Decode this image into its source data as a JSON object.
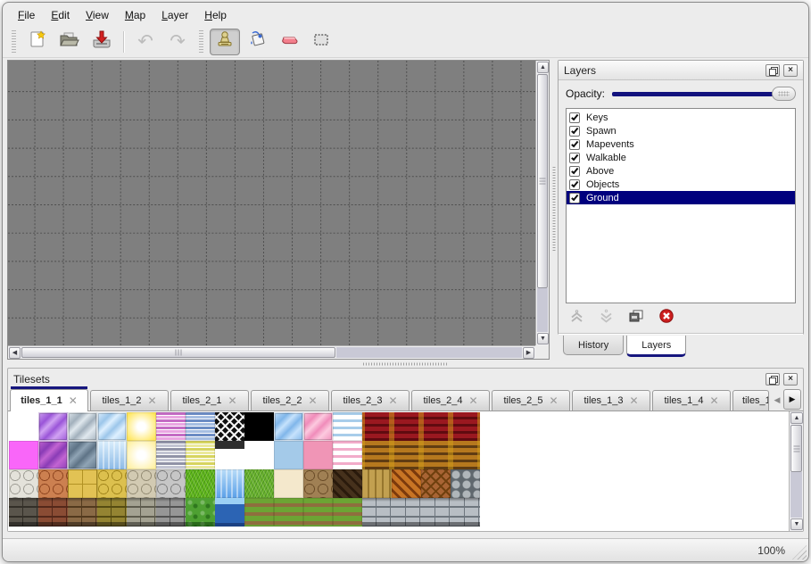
{
  "menu": {
    "items": [
      "File",
      "Edit",
      "View",
      "Map",
      "Layer",
      "Help"
    ]
  },
  "toolbar": {
    "buttons": [
      {
        "id": "new",
        "icon": "new-document-icon",
        "disabled": false,
        "active": false
      },
      {
        "id": "open",
        "icon": "open-folder-icon",
        "disabled": false,
        "active": false
      },
      {
        "id": "save",
        "icon": "save-icon",
        "disabled": false,
        "active": false
      },
      {
        "id": "undo",
        "icon": "undo-icon",
        "disabled": true,
        "active": false
      },
      {
        "id": "redo",
        "icon": "redo-icon",
        "disabled": true,
        "active": false
      },
      {
        "id": "stamp",
        "icon": "stamp-tool-icon",
        "disabled": false,
        "active": true
      },
      {
        "id": "fill",
        "icon": "fill-tool-icon",
        "disabled": false,
        "active": false
      },
      {
        "id": "eraser",
        "icon": "eraser-tool-icon",
        "disabled": false,
        "active": false
      },
      {
        "id": "select",
        "icon": "selection-tool-icon",
        "disabled": false,
        "active": false
      }
    ]
  },
  "layers_panel": {
    "title": "Layers",
    "opacity_label": "Opacity:",
    "opacity_percent": 100,
    "layers": [
      {
        "label": "Keys",
        "checked": true,
        "selected": false
      },
      {
        "label": "Spawn",
        "checked": true,
        "selected": false
      },
      {
        "label": "Mapevents",
        "checked": true,
        "selected": false
      },
      {
        "label": "Walkable",
        "checked": true,
        "selected": false
      },
      {
        "label": "Above",
        "checked": true,
        "selected": false
      },
      {
        "label": "Objects",
        "checked": true,
        "selected": false
      },
      {
        "label": "Ground",
        "checked": true,
        "selected": true
      }
    ],
    "tabs": [
      {
        "label": "History",
        "active": false
      },
      {
        "label": "Layers",
        "active": true
      }
    ]
  },
  "tilesets_panel": {
    "title": "Tilesets",
    "tabs": [
      {
        "label": "tiles_1_1",
        "active": true,
        "truncated": false
      },
      {
        "label": "tiles_1_2",
        "active": false,
        "truncated": false
      },
      {
        "label": "tiles_2_1",
        "active": false,
        "truncated": false
      },
      {
        "label": "tiles_2_2",
        "active": false,
        "truncated": false
      },
      {
        "label": "tiles_2_3",
        "active": false,
        "truncated": false
      },
      {
        "label": "tiles_2_4",
        "active": false,
        "truncated": false
      },
      {
        "label": "tiles_2_5",
        "active": false,
        "truncated": false
      },
      {
        "label": "tiles_1_3",
        "active": false,
        "truncated": false
      },
      {
        "label": "tiles_1_4",
        "active": false,
        "truncated": false
      },
      {
        "label": "tiles_1_",
        "active": false,
        "truncated": true
      }
    ]
  },
  "statusbar": {
    "zoom": "100%"
  },
  "colors": {
    "accent_navy": "#00007e",
    "canvas_gray": "#7f7f7f",
    "grid_line": "#3f3f3f",
    "selection_red": "#cc1f1f"
  },
  "palette": {
    "rows": [
      [
        {
          "n": "blank",
          "p": "empty"
        },
        {
          "n": "purple-crystal",
          "p": "crystal",
          "c1": "#9a55d8",
          "c2": "#d0a2f2"
        },
        {
          "n": "gray-crystal",
          "p": "crystal",
          "c1": "#a2b0bc",
          "c2": "#e0e8ee"
        },
        {
          "n": "blue-crystal",
          "p": "crystal",
          "c1": "#9cc6ea",
          "c2": "#def0ff"
        },
        {
          "n": "yellow-glow",
          "p": "glow",
          "c1": "#ffe65a"
        },
        {
          "n": "pink-stripes",
          "p": "stripes",
          "c1": "#c46cc4",
          "c2": "#eaa6e2"
        },
        {
          "n": "blue-stripes",
          "p": "stripes",
          "c1": "#6c8cc4",
          "c2": "#a6bee2"
        },
        {
          "n": "lattice",
          "p": "lattice",
          "c1": "#101010",
          "c2": "#f2f2f2"
        },
        {
          "n": "black",
          "p": "solid",
          "c1": "#000000"
        },
        {
          "n": "skyblue-crystal",
          "p": "crystal",
          "c1": "#80b6ea",
          "c2": "#c6e2fc"
        },
        {
          "n": "pink-crystal",
          "p": "crystal",
          "c1": "#f08cba",
          "c2": "#fccadf"
        },
        {
          "n": "blue-waves",
          "p": "wavy",
          "c1": "#a8cdea"
        },
        {
          "n": "red-curtain",
          "p": "curtain",
          "c1": "#9a1820",
          "c2": "#600b10"
        },
        {
          "n": "red-curtain",
          "p": "curtain",
          "c1": "#9a1820",
          "c2": "#600b10"
        },
        {
          "n": "red-curtain",
          "p": "curtain",
          "c1": "#9a1820",
          "c2": "#600b10"
        },
        {
          "n": "red-curtain",
          "p": "curtain",
          "c1": "#9a1820",
          "c2": "#600b10"
        }
      ],
      [
        {
          "n": "magenta",
          "p": "solid",
          "c1": "#f966f9"
        },
        {
          "n": "violet-crystal",
          "p": "crystal",
          "c1": "#8a3cb6",
          "c2": "#c264d2"
        },
        {
          "n": "slate-crystal",
          "p": "crystal",
          "c1": "#5e7386",
          "c2": "#90a4b5"
        },
        {
          "n": "light-water",
          "p": "water",
          "c1": "#8cbae6",
          "c2": "#daeefc"
        },
        {
          "n": "pale-yellow-glow",
          "p": "glow",
          "c1": "#fff0a0"
        },
        {
          "n": "gray-stripes",
          "p": "stripes",
          "c1": "#9092a6",
          "c2": "#c2c4d2"
        },
        {
          "n": "yellow-stripes",
          "p": "stripes",
          "c1": "#d6d45e",
          "c2": "#ebe99c"
        },
        {
          "n": "dark-bar",
          "p": "bar",
          "c1": "#2e2e2e"
        },
        {
          "n": "blank",
          "p": "empty"
        },
        {
          "n": "light-blue",
          "p": "solid",
          "c1": "#a4cae9"
        },
        {
          "n": "rose",
          "p": "solid",
          "c1": "#f095b6"
        },
        {
          "n": "pink-waves",
          "p": "wavy",
          "c1": "#f2acca"
        },
        {
          "n": "orange-curtain",
          "p": "curtain",
          "c1": "#b6781e",
          "c2": "#603c12"
        },
        {
          "n": "orange-curtain",
          "p": "curtain",
          "c1": "#b6781e",
          "c2": "#603c12"
        },
        {
          "n": "orange-curtain",
          "p": "curtain",
          "c1": "#b6781e",
          "c2": "#603c12"
        },
        {
          "n": "orange-curtain",
          "p": "curtain",
          "c1": "#b6781e",
          "c2": "#603c12"
        }
      ],
      [
        {
          "n": "white-pavement",
          "p": "cobble",
          "c1": "#e4e2da",
          "c2": "#9e9c94"
        },
        {
          "n": "terracotta-pavement",
          "p": "cobble",
          "c1": "#cc8050",
          "c2": "#8e4520"
        },
        {
          "n": "yellow-tiles",
          "p": "tile4",
          "c1": "#e2c254",
          "c2": "#b29224"
        },
        {
          "n": "yellow-pavement",
          "p": "cobble",
          "c1": "#dcc04e",
          "c2": "#a2861c"
        },
        {
          "n": "beige-cobblestone",
          "p": "cobble",
          "c1": "#d2cab2",
          "c2": "#948c74"
        },
        {
          "n": "gray-cobblestone",
          "p": "cobble",
          "c1": "#c6c6c6",
          "c2": "#7e7e7e"
        },
        {
          "n": "grass",
          "p": "grass",
          "c1": "#63b81e",
          "c2": "#4da00e"
        },
        {
          "n": "water",
          "p": "water",
          "c1": "#5aa0e8",
          "c2": "#b8dcf8"
        },
        {
          "n": "grass-2",
          "p": "grass",
          "c1": "#6cb430",
          "c2": "#529a16"
        },
        {
          "n": "sand",
          "p": "solid",
          "c1": "#f4e8cc"
        },
        {
          "n": "dirt-pebbles",
          "p": "cobble",
          "c1": "#a08054",
          "c2": "#6a4c28"
        },
        {
          "n": "dark-wood",
          "p": "weave",
          "c1": "#46311c",
          "c2": "#2a1a0c"
        },
        {
          "n": "wood-planks",
          "p": "planks",
          "c1": "#c2a050",
          "c2": "#96762e"
        },
        {
          "n": "brick-weave",
          "p": "weave",
          "c1": "#c87424",
          "c2": "#7c3a0c"
        },
        {
          "n": "herringbone-wood",
          "p": "herringbone",
          "c1": "#a86434",
          "c2": "#70400e"
        },
        {
          "n": "stone-pile",
          "p": "pile",
          "c1": "#b0b6ba",
          "c2": "#60686e"
        }
      ],
      [
        {
          "n": "darkgray-brick-wall",
          "p": "brickwall",
          "c1": "#5a554c",
          "c2": "#332f28"
        },
        {
          "n": "brown-brick-wall",
          "p": "brickwall",
          "c1": "#8a4c34",
          "c2": "#54281a"
        },
        {
          "n": "tan-brick-wall",
          "p": "brickwall",
          "c1": "#8a6a46",
          "c2": "#523a1e"
        },
        {
          "n": "olive-stone-wall",
          "p": "brickwall",
          "c1": "#948432",
          "c2": "#564c12"
        },
        {
          "n": "graystone-wall",
          "p": "brickwall",
          "c1": "#a4a292",
          "c2": "#5e5c4e"
        },
        {
          "n": "gray-brick-wall",
          "p": "brickwall",
          "c1": "#969696",
          "c2": "#525252"
        },
        {
          "n": "hedge",
          "p": "hedge",
          "c1": "#4ea032",
          "c2": "#1e5c12"
        },
        {
          "n": "water-edge",
          "p": "waterwall",
          "c1": "#2c64b4",
          "c2": "#9cd0f4"
        },
        {
          "n": "grass-dirt-rows",
          "p": "rows",
          "c1": "#6ca434",
          "c2": "#8e6e3e"
        },
        {
          "n": "grass-dirt-rows",
          "p": "rows",
          "c1": "#6ca434",
          "c2": "#8e6e3e"
        },
        {
          "n": "grass-dirt-rows",
          "p": "rows",
          "c1": "#6ca434",
          "c2": "#8e6e3e"
        },
        {
          "n": "grass-dirt-rows",
          "p": "rows",
          "c1": "#6ca434",
          "c2": "#8e6e3e"
        },
        {
          "n": "lightgray-brick-wall",
          "p": "brickwall",
          "c1": "#b8bec4",
          "c2": "#6e767e"
        },
        {
          "n": "lightgray-brick-wall",
          "p": "brickwall",
          "c1": "#b8bec4",
          "c2": "#6e767e"
        },
        {
          "n": "lightgray-brick-wall",
          "p": "brickwall",
          "c1": "#b8bec4",
          "c2": "#6e767e"
        },
        {
          "n": "lightgray-brick-wall",
          "p": "brickwall",
          "c1": "#b8bec4",
          "c2": "#6e767e"
        }
      ]
    ]
  }
}
